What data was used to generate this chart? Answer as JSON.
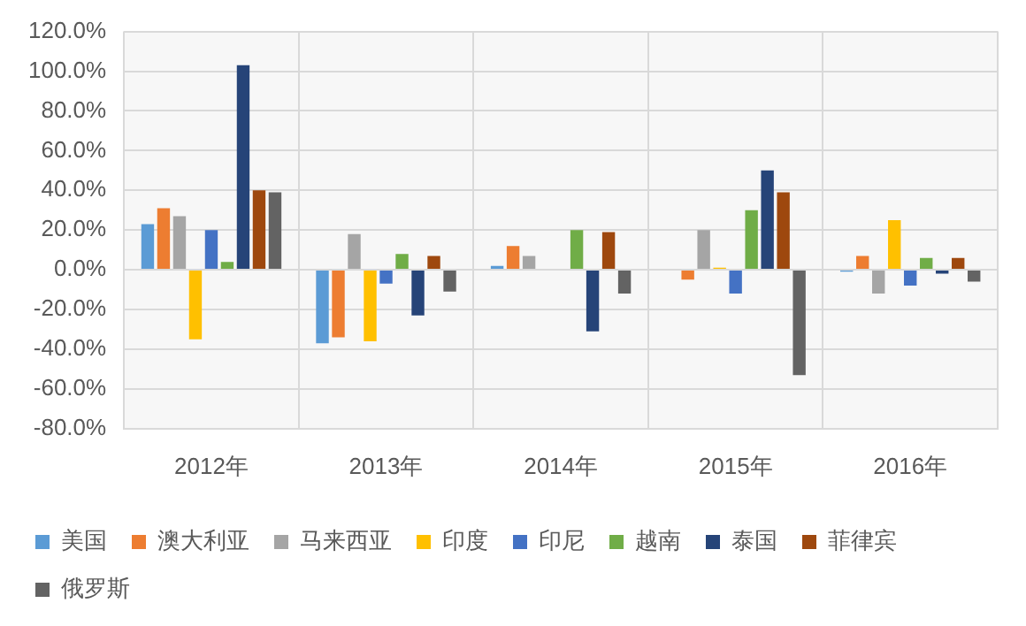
{
  "chart_data": {
    "type": "bar",
    "categories": [
      "2012年",
      "2013年",
      "2014年",
      "2015年",
      "2016年"
    ],
    "series": [
      {
        "name": "美国",
        "color": "#5b9bd5",
        "values": [
          23,
          -37,
          2,
          0,
          -1
        ]
      },
      {
        "name": "澳大利亚",
        "color": "#ed7d31",
        "values": [
          31,
          -34,
          12,
          -5,
          7
        ]
      },
      {
        "name": "马来西亚",
        "color": "#a5a5a5",
        "values": [
          27,
          18,
          7,
          20,
          -12
        ]
      },
      {
        "name": "印度",
        "color": "#ffc000",
        "values": [
          -35,
          -36,
          0,
          1,
          25
        ]
      },
      {
        "name": "印尼",
        "color": "#4472c4",
        "values": [
          20,
          -7,
          0,
          -12,
          -8
        ]
      },
      {
        "name": "越南",
        "color": "#70ad47",
        "values": [
          4,
          8,
          20,
          30,
          6
        ]
      },
      {
        "name": "泰国",
        "color": "#264478",
        "values": [
          103,
          -23,
          -31,
          50,
          -2
        ]
      },
      {
        "name": "菲律宾",
        "color": "#9e480e",
        "values": [
          40,
          7,
          19,
          39,
          6
        ]
      },
      {
        "name": "俄罗斯",
        "color": "#636363",
        "values": [
          39,
          -11,
          -12,
          -53,
          -6
        ]
      }
    ],
    "ylim": [
      -80,
      120
    ],
    "yticks": [
      {
        "value": -80,
        "label": "-80.0%"
      },
      {
        "value": -60,
        "label": "-60.0%"
      },
      {
        "value": -40,
        "label": "-40.0%"
      },
      {
        "value": -20,
        "label": "-20.0%"
      },
      {
        "value": 0,
        "label": "0.0%"
      },
      {
        "value": 20,
        "label": "20.0%"
      },
      {
        "value": 40,
        "label": "40.0%"
      },
      {
        "value": 60,
        "label": "60.0%"
      },
      {
        "value": 80,
        "label": "80.0%"
      },
      {
        "value": 100,
        "label": "100.0%"
      },
      {
        "value": 120,
        "label": "120.0%"
      }
    ],
    "grid": true,
    "legend": "bottom"
  }
}
